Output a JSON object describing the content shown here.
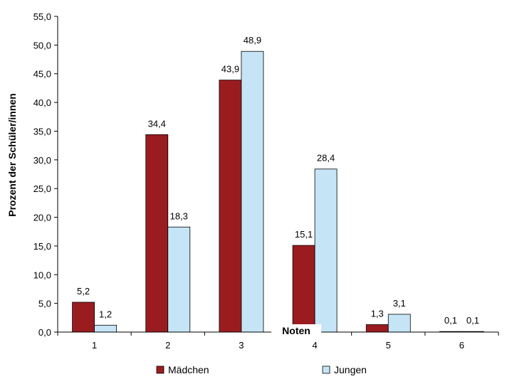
{
  "chart_data": {
    "type": "bar",
    "categories": [
      "1",
      "2",
      "3",
      "4",
      "5",
      "6"
    ],
    "series": [
      {
        "name": "Mädchen",
        "values": [
          5.2,
          34.4,
          43.9,
          15.1,
          1.3,
          0.1
        ],
        "labels": [
          "5,2",
          "34,4",
          "43,9",
          "15,1",
          "1,3",
          "0,1"
        ],
        "color": "#9B1C1F"
      },
      {
        "name": "Jungen",
        "values": [
          1.2,
          18.3,
          48.9,
          28.4,
          3.1,
          0.1
        ],
        "labels": [
          "1,2",
          "18,3",
          "48,9",
          "28,4",
          "3,1",
          "0,1"
        ],
        "color": "#C5E5F7"
      }
    ],
    "xlabel": "Noten",
    "ylabel": "Prozent der Schüler/innen",
    "ylim": [
      0,
      55
    ],
    "yticks": [
      0,
      5,
      10,
      15,
      20,
      25,
      30,
      35,
      40,
      45,
      50,
      55
    ],
    "ytick_labels": [
      "0,0",
      "5,0",
      "10,0",
      "15,0",
      "20,0",
      "25,0",
      "30,0",
      "35,0",
      "40,0",
      "45,0",
      "50,0",
      "55,0"
    ],
    "grid": false,
    "legend": "bottom"
  }
}
